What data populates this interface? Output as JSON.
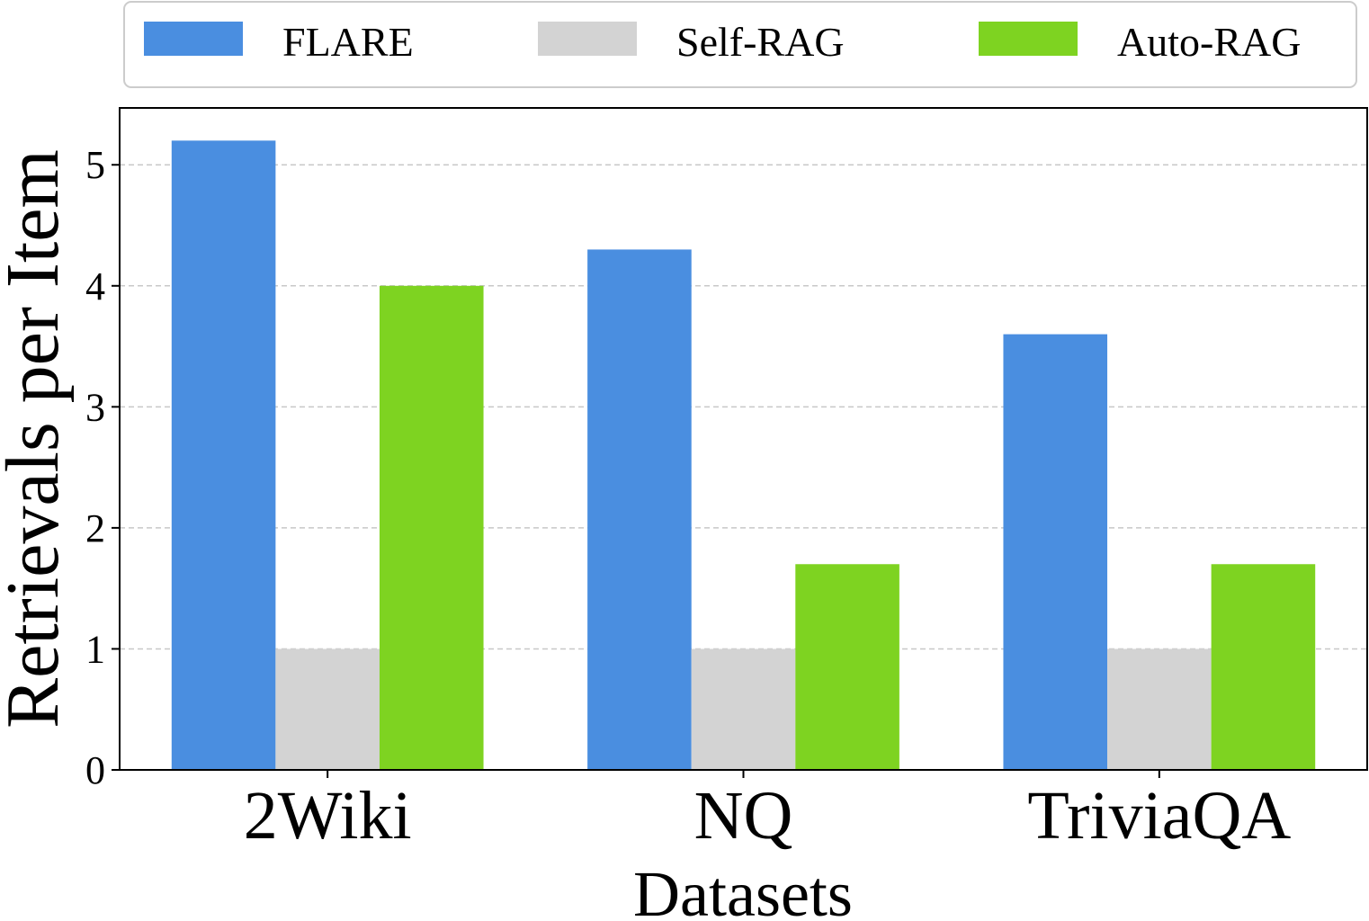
{
  "chart_data": {
    "type": "bar",
    "title": "",
    "xlabel": "Datasets",
    "ylabel": "Retrievals per Item",
    "categories": [
      "2Wiki",
      "NQ",
      "TriviaQA"
    ],
    "series": [
      {
        "name": "FLARE",
        "values": [
          5.2,
          4.3,
          3.6
        ],
        "color": "#4a8ee0"
      },
      {
        "name": "Self-RAG",
        "values": [
          1.0,
          1.0,
          1.0
        ],
        "color": "#d3d3d3"
      },
      {
        "name": "Auto-RAG",
        "values": [
          4.0,
          1.7,
          1.7
        ],
        "color": "#7ed321"
      }
    ],
    "ylim": [
      0,
      5.47
    ],
    "yticks": [
      0,
      1,
      2,
      3,
      4,
      5
    ],
    "grid": "y-dashed",
    "legend_position": "top",
    "legend_columns": 3
  }
}
